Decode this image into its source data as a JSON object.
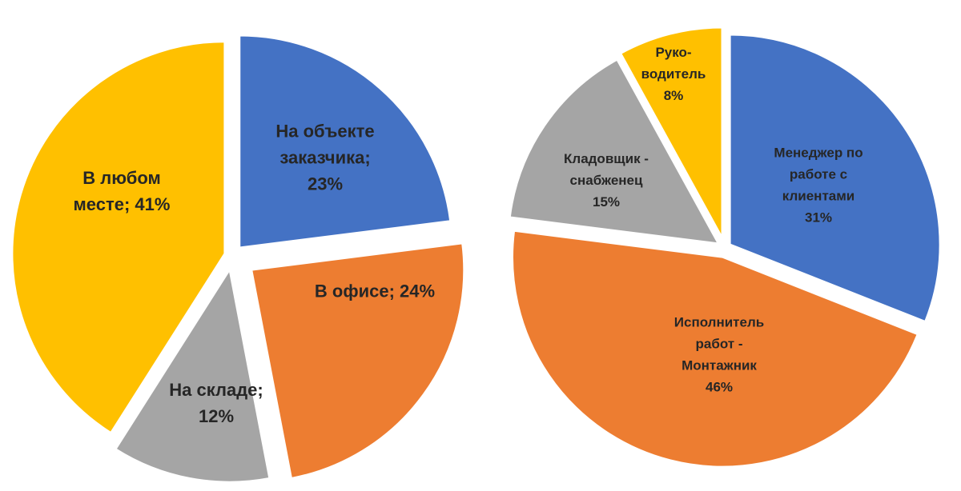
{
  "chart_data": [
    {
      "type": "pie",
      "title": "",
      "legend": "none",
      "slices": [
        {
          "label_lines": [
            "На объекте",
            "заказчика;",
            "23%"
          ],
          "value": 23,
          "color": "#4472C4"
        },
        {
          "label_lines": [
            "В офисе; 24%"
          ],
          "value": 24,
          "color": "#ED7D31"
        },
        {
          "label_lines": [
            "На складе;",
            "12%"
          ],
          "value": 12,
          "color": "#A5A5A5"
        },
        {
          "label_lines": [
            "В любом",
            "месте; 41%"
          ],
          "value": 41,
          "color": "#FFC000"
        }
      ]
    },
    {
      "type": "pie",
      "title": "",
      "legend": "none",
      "slices": [
        {
          "label_lines": [
            "Менеджер по",
            "работе с",
            "клиентами",
            "31%"
          ],
          "value": 31,
          "color": "#4472C4"
        },
        {
          "label_lines": [
            "Исполнитель",
            "работ -",
            "Монтажник",
            "46%"
          ],
          "value": 46,
          "color": "#ED7D31"
        },
        {
          "label_lines": [
            "Кладовщик -",
            "снабженец",
            "15%"
          ],
          "value": 15,
          "color": "#A5A5A5"
        },
        {
          "label_lines": [
            "Руко-",
            "водитель",
            "8%"
          ],
          "value": 8,
          "color": "#FFC000"
        }
      ]
    }
  ]
}
